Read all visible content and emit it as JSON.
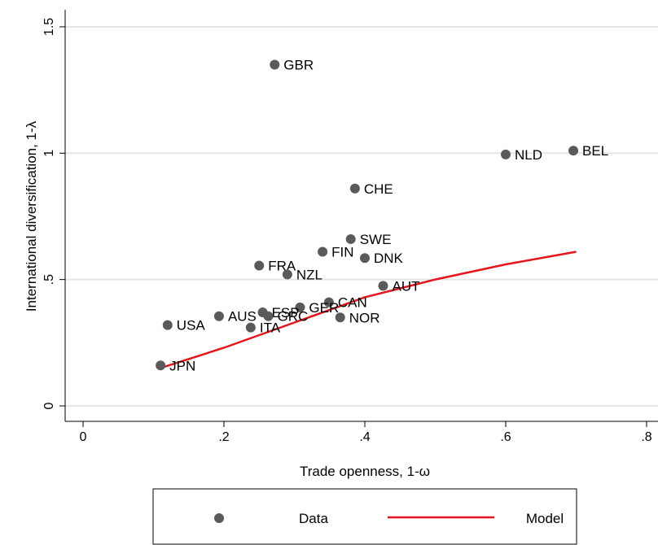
{
  "chart_data": {
    "type": "scatter",
    "xlabel": "Trade openness, 1-ω",
    "ylabel": "International diversification, 1-λ",
    "xlim": [
      0,
      0.8
    ],
    "ylim": [
      0,
      1.5
    ],
    "xticks": [
      {
        "v": 0,
        "label": "0"
      },
      {
        "v": 0.2,
        "label": ".2"
      },
      {
        "v": 0.4,
        "label": ".4"
      },
      {
        "v": 0.6,
        "label": ".6"
      },
      {
        "v": 0.8,
        "label": ".8"
      }
    ],
    "yticks": [
      {
        "v": 0,
        "label": "0"
      },
      {
        "v": 0.5,
        "label": ".5"
      },
      {
        "v": 1,
        "label": "1"
      },
      {
        "v": 1.5,
        "label": "1.5"
      }
    ],
    "grid": true,
    "legend": {
      "placement": "bottom",
      "entries": [
        "Data",
        "Model"
      ]
    },
    "colors": {
      "data": "#5a5a5a",
      "model": "#e8141b"
    },
    "series": [
      {
        "name": "Data",
        "kind": "scatter",
        "points": [
          {
            "label": "GBR",
            "x": 0.272,
            "y": 1.35
          },
          {
            "label": "NLD",
            "x": 0.6,
            "y": 0.995
          },
          {
            "label": "BEL",
            "x": 0.696,
            "y": 1.01
          },
          {
            "label": "CHE",
            "x": 0.386,
            "y": 0.86
          },
          {
            "label": "SWE",
            "x": 0.38,
            "y": 0.66
          },
          {
            "label": "FIN",
            "x": 0.34,
            "y": 0.61
          },
          {
            "label": "DNK",
            "x": 0.4,
            "y": 0.585
          },
          {
            "label": "FRA",
            "x": 0.25,
            "y": 0.555
          },
          {
            "label": "NZL",
            "x": 0.29,
            "y": 0.52
          },
          {
            "label": "AUT",
            "x": 0.426,
            "y": 0.475
          },
          {
            "label": "CAN",
            "x": 0.349,
            "y": 0.41
          },
          {
            "label": "GER",
            "x": 0.308,
            "y": 0.39
          },
          {
            "label": "ESP",
            "x": 0.255,
            "y": 0.37
          },
          {
            "label": "GRC",
            "x": 0.263,
            "y": 0.355
          },
          {
            "label": "AUS",
            "x": 0.193,
            "y": 0.355
          },
          {
            "label": "NOR",
            "x": 0.365,
            "y": 0.35
          },
          {
            "label": "USA",
            "x": 0.12,
            "y": 0.32
          },
          {
            "label": "ITA",
            "x": 0.238,
            "y": 0.31
          },
          {
            "label": "JPN",
            "x": 0.11,
            "y": 0.16
          }
        ]
      },
      {
        "name": "Model",
        "kind": "line",
        "points": [
          {
            "x": 0.11,
            "y": 0.15
          },
          {
            "x": 0.2,
            "y": 0.23
          },
          {
            "x": 0.3,
            "y": 0.33
          },
          {
            "x": 0.4,
            "y": 0.43
          },
          {
            "x": 0.5,
            "y": 0.5
          },
          {
            "x": 0.6,
            "y": 0.56
          },
          {
            "x": 0.7,
            "y": 0.61
          }
        ]
      }
    ]
  }
}
